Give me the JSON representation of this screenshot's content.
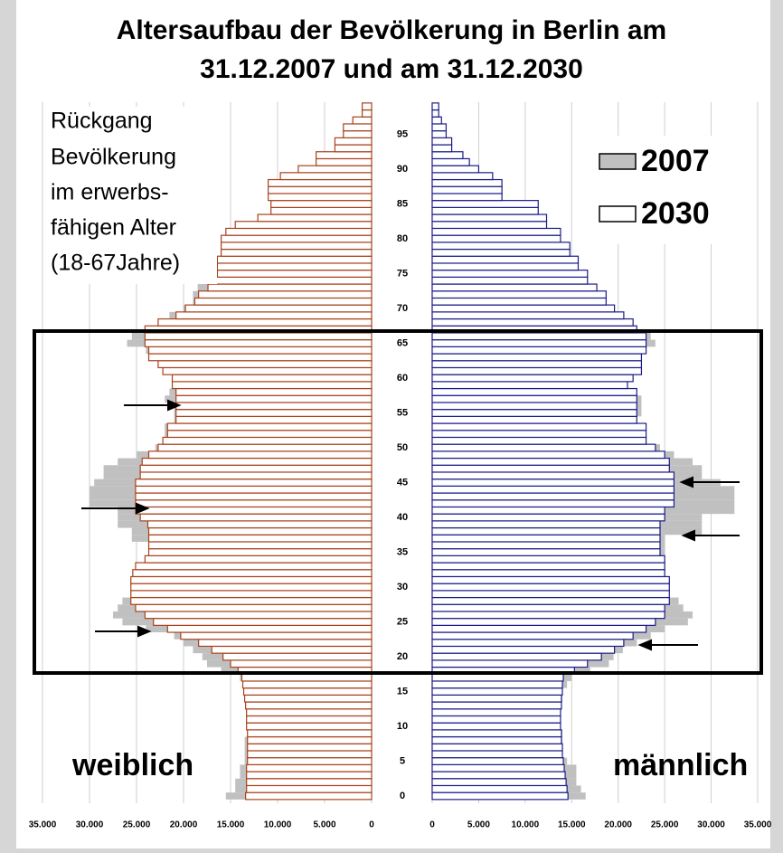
{
  "chart_data": {
    "type": "pyramid",
    "title": [
      "Altersaufbau der Bevölkerung in Berlin am",
      "31.12.2007 und am 31.12.2030"
    ],
    "annotation": [
      "Rückgang",
      "Bevölkerung",
      "im erwerbs-",
      "fähigen Alter",
      "(18-67Jahre)"
    ],
    "categories": [
      0,
      null,
      null,
      null,
      null,
      5,
      null,
      null,
      null,
      null,
      10,
      null,
      null,
      null,
      null,
      15,
      null,
      null,
      null,
      null,
      20,
      null,
      null,
      null,
      null,
      25,
      null,
      null,
      null,
      null,
      30,
      null,
      null,
      null,
      null,
      35,
      null,
      null,
      null,
      null,
      40,
      null,
      null,
      null,
      null,
      45,
      null,
      null,
      null,
      null,
      50,
      null,
      null,
      null,
      null,
      55,
      null,
      null,
      null,
      null,
      60,
      null,
      null,
      null,
      null,
      65,
      null,
      null,
      null,
      null,
      70,
      null,
      null,
      null,
      null,
      75,
      null,
      null,
      null,
      null,
      80,
      null,
      null,
      null,
      null,
      85,
      null,
      null,
      null,
      null,
      90,
      null,
      null,
      null,
      null,
      95,
      null,
      null,
      null,
      null
    ],
    "grid": true,
    "panels": [
      {
        "label": "weiblich",
        "xlim": [
          35000,
          0
        ],
        "xticks": [
          {
            "value": 35000,
            "label": "35.000"
          },
          {
            "value": 30000,
            "label": "30.000"
          },
          {
            "value": 25000,
            "label": "25.000"
          },
          {
            "value": 20000,
            "label": "20.000"
          },
          {
            "value": 15000,
            "label": "15.000"
          },
          {
            "value": 10000,
            "label": "10.000"
          },
          {
            "value": 5000,
            "label": "5.000"
          },
          0
        ],
        "series": [
          {
            "name": "2007",
            "color": "#c0c0c0",
            "values": [
              15500,
              14500,
              14500,
              14000,
              14000,
              13500,
              13500,
              13500,
              13500,
              13000,
              13000,
              13000,
              13000,
              13000,
              13500,
              13500,
              13500,
              14000,
              16000,
              17500,
              18000,
              19000,
              20000,
              21000,
              24000,
              26500,
              27500,
              27000,
              26500,
              25500,
              25500,
              25500,
              24500,
              23500,
              23000,
              23000,
              23000,
              25500,
              25500,
              27000,
              27000,
              27000,
              30000,
              30000,
              30000,
              29500,
              28500,
              28500,
              27000,
              25000,
              23000,
              22000,
              22000,
              22000,
              21000,
              21000,
              21000,
              22000,
              21500,
              21000,
              21000,
              15500,
              19000,
              22000,
              24000,
              26000,
              25500,
              24000,
              22000,
              21500,
              20000,
              19000,
              19000,
              18500,
              17500,
              14000,
              12500,
              12000,
              12000,
              11500,
              10500,
              10000,
              9500,
              9000,
              8500,
              8000,
              7000,
              7000,
              7000,
              6000,
              4500,
              3500,
              3000,
              2000,
              1500,
              1200,
              1000,
              700,
              500,
              300
            ]
          },
          {
            "name": "2030",
            "color": "#ffffff",
            "edgecolor": "#a8421c",
            "values": [
              13400,
              13300,
              13300,
              13300,
              13300,
              13200,
              13200,
              13200,
              13200,
              13200,
              13300,
              13300,
              13300,
              13400,
              13500,
              13600,
              13700,
              13800,
              14200,
              15000,
              15800,
              17000,
              18400,
              20300,
              21700,
              23200,
              24100,
              25100,
              25600,
              25600,
              25600,
              25600,
              25400,
              25100,
              24100,
              23700,
              23700,
              23700,
              23700,
              23800,
              24600,
              25100,
              25100,
              25100,
              25100,
              25100,
              24600,
              24600,
              24400,
              23700,
              22700,
              22200,
              21700,
              21700,
              20800,
              20800,
              20800,
              20800,
              20800,
              21200,
              21200,
              22200,
              22700,
              23700,
              23700,
              24100,
              24100,
              24100,
              22700,
              20800,
              19800,
              18800,
              18400,
              17400,
              17400,
              16400,
              16400,
              16400,
              16000,
              16000,
              16000,
              15500,
              14500,
              12100,
              10700,
              10700,
              11000,
              11000,
              11000,
              9700,
              7800,
              5900,
              5900,
              3900,
              3900,
              3000,
              3000,
              2000,
              1000,
              1000
            ]
          }
        ]
      },
      {
        "label": "männlich",
        "xlim": [
          0,
          35000
        ],
        "xticks": [
          0,
          {
            "value": 5000,
            "label": "5.000"
          },
          {
            "value": 10000,
            "label": "10.000"
          },
          {
            "value": 15000,
            "label": "15.000"
          },
          {
            "value": 20000,
            "label": "20.000"
          },
          {
            "value": 25000,
            "label": "25.000"
          },
          {
            "value": 30000,
            "label": "30.000"
          },
          {
            "value": 35000,
            "label": "35.000"
          }
        ],
        "series": [
          {
            "name": "2007",
            "color": "#c0c0c0",
            "values": [
              16500,
              16000,
              15500,
              15500,
              15500,
              14500,
              14000,
              14000,
              14000,
              14000,
              13500,
              13500,
              13500,
              13500,
              14000,
              14000,
              14500,
              15000,
              17000,
              19000,
              19500,
              20500,
              22000,
              23500,
              25000,
              27500,
              28000,
              27000,
              26500,
              25500,
              25500,
              25500,
              24500,
              24500,
              24500,
              25000,
              25000,
              25000,
              29000,
              29000,
              29000,
              32500,
              32500,
              32500,
              32500,
              31000,
              29000,
              29000,
              28000,
              26000,
              24500,
              23000,
              23000,
              23000,
              22000,
              22500,
              22500,
              22500,
              22000,
              20500,
              20500,
              15000,
              17500,
              21000,
              22500,
              24000,
              23500,
              21500,
              20500,
              19000,
              17500,
              16000,
              15500,
              14500,
              13000,
              9000,
              9000,
              8500,
              8000,
              7000,
              6500,
              6000,
              5500,
              4500,
              3000,
              2800,
              2500,
              2500,
              2500,
              2000,
              1500,
              1200,
              1000,
              700,
              500,
              300,
              300,
              200,
              200,
              100
            ]
          },
          {
            "name": "2030",
            "color": "#ffffff",
            "edgecolor": "#1c1c8a",
            "values": [
              14600,
              14500,
              14400,
              14300,
              14200,
              14100,
              14000,
              14000,
              13900,
              13900,
              13800,
              13800,
              13800,
              13900,
              13900,
              14000,
              14000,
              14100,
              15300,
              16700,
              18200,
              19600,
              20600,
              21600,
              23000,
              24000,
              25000,
              25000,
              25500,
              25500,
              25500,
              25500,
              25000,
              25000,
              25000,
              24500,
              24500,
              24500,
              24500,
              24500,
              25000,
              25000,
              26000,
              26000,
              26000,
              26000,
              26000,
              25500,
              25500,
              25000,
              24000,
              23000,
              23000,
              23000,
              22000,
              22000,
              22000,
              22000,
              22000,
              21000,
              21600,
              22500,
              22500,
              22500,
              23000,
              23000,
              23000,
              22000,
              21600,
              20600,
              19600,
              18700,
              18700,
              17700,
              16700,
              16700,
              15700,
              15700,
              14800,
              14800,
              13800,
              13800,
              12300,
              12300,
              11400,
              11400,
              7500,
              7500,
              7500,
              6500,
              5000,
              4000,
              3300,
              2100,
              2100,
              1500,
              1500,
              1000,
              700,
              700
            ]
          }
        ]
      }
    ]
  }
}
